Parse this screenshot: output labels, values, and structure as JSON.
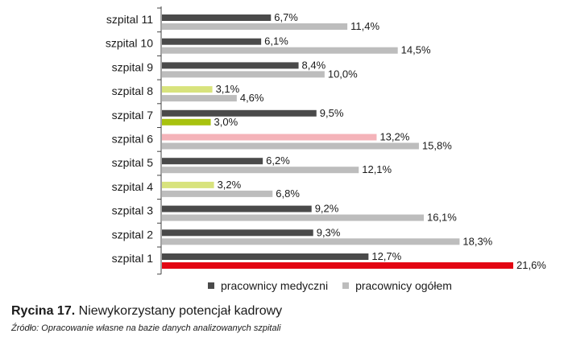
{
  "chart_data": {
    "type": "bar",
    "orientation": "horizontal",
    "categories": [
      "szpital 11",
      "szpital 10",
      "szpital 9",
      "szpital 8",
      "szpital 7",
      "szpital 6",
      "szpital 5",
      "szpital 4",
      "szpital 3",
      "szpital 2",
      "szpital 1"
    ],
    "series": [
      {
        "name": "pracownicy medyczni",
        "color": "#4a4a4a",
        "values": [
          6.7,
          6.1,
          8.4,
          3.1,
          9.5,
          13.2,
          6.2,
          3.2,
          9.2,
          9.3,
          12.7
        ],
        "labels": [
          "6,7%",
          "6,1%",
          "8,4%",
          "3,1%",
          "9,5%",
          "13,2%",
          "6,2%",
          "3,2%",
          "9,2%",
          "9,3%",
          "12,7%"
        ],
        "bar_colors": [
          "#4a4a4a",
          "#4a4a4a",
          "#4a4a4a",
          "#d8e37d",
          "#4a4a4a",
          "#f4b3b9",
          "#4a4a4a",
          "#d8e37d",
          "#4a4a4a",
          "#4a4a4a",
          "#4a4a4a"
        ]
      },
      {
        "name": "pracownicy ogółem",
        "color": "#bdbdbd",
        "values": [
          11.4,
          14.5,
          10.0,
          4.6,
          3.0,
          15.8,
          12.1,
          6.8,
          16.1,
          18.3,
          21.6
        ],
        "labels": [
          "11,4%",
          "14,5%",
          "10,0%",
          "4,6%",
          "3,0%",
          "15,8%",
          "12,1%",
          "6,8%",
          "16,1%",
          "18,3%",
          "21,6%"
        ],
        "bar_colors": [
          "#bdbdbd",
          "#bdbdbd",
          "#bdbdbd",
          "#bdbdbd",
          "#a8c20f",
          "#bdbdbd",
          "#bdbdbd",
          "#bdbdbd",
          "#bdbdbd",
          "#bdbdbd",
          "#e30613"
        ]
      }
    ],
    "xlim": [
      0,
      21.6
    ],
    "grid": false,
    "legend_position": "bottom"
  },
  "caption": {
    "figure_label": "Rycina 17.",
    "title": " Niewykorzystany potencjał kadrowy"
  },
  "source": "Źródło: Opracowanie własne na bazie danych analizowanych szpitali"
}
